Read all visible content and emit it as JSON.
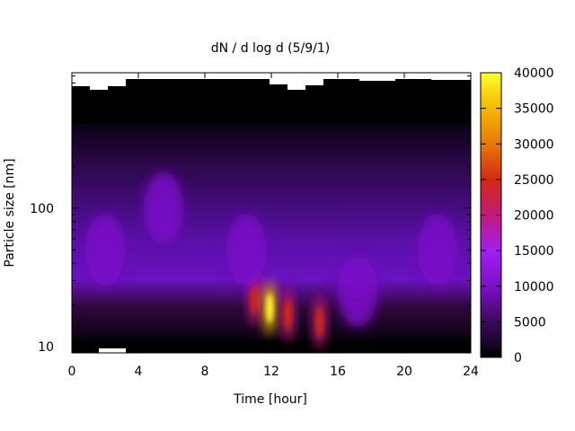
{
  "chart_data": {
    "type": "heatmap",
    "title": "dN / d log d (5/9/1)",
    "xlabel": "Time [hour]",
    "ylabel": "Particle size [nm]",
    "x_range": [
      0,
      24
    ],
    "x_ticks": [
      "0",
      "4",
      "8",
      "12",
      "16",
      "20",
      "24"
    ],
    "y_scale": "log",
    "y_range": [
      9,
      950
    ],
    "y_ticks": [
      "10",
      "100"
    ],
    "colorbar": {
      "range": [
        0,
        40000
      ],
      "ticks": [
        "0",
        "5000",
        "10000",
        "15000",
        "20000",
        "25000",
        "30000",
        "35000",
        "40000"
      ],
      "colormap": [
        "#000000",
        "#3c0a5a",
        "#7a10c8",
        "#a020f0",
        "#c21a7a",
        "#d42a10",
        "#e8780a",
        "#f5b800",
        "#ffff30"
      ]
    },
    "background_band": {
      "y_nm_range": [
        11,
        380
      ],
      "approx_value": 4000
    },
    "blobs": [
      {
        "x_hour": 11.0,
        "y_nm": 22,
        "value": 21000
      },
      {
        "x_hour": 11.9,
        "y_nm": 19,
        "value": 36000
      },
      {
        "x_hour": 13.0,
        "y_nm": 17,
        "value": 22000
      },
      {
        "x_hour": 14.9,
        "y_nm": 15,
        "value": 22000
      },
      {
        "x_hour": 17.2,
        "y_nm": 25,
        "value": 11000
      },
      {
        "x_hour": 22.0,
        "y_nm": 50,
        "value": 10000
      },
      {
        "x_hour": 2.0,
        "y_nm": 50,
        "value": 10000
      },
      {
        "x_hour": 10.5,
        "y_nm": 50,
        "value": 9000
      },
      {
        "x_hour": 5.5,
        "y_nm": 100,
        "value": 9000
      }
    ]
  }
}
